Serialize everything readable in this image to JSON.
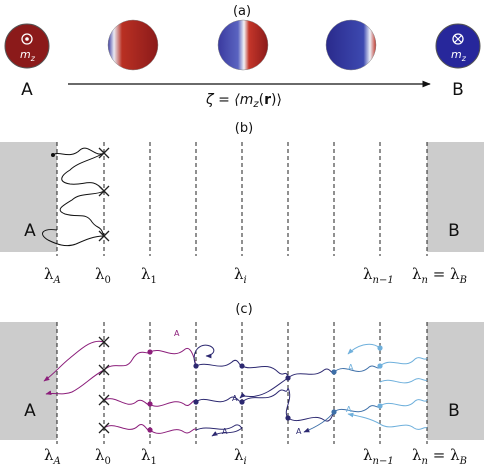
{
  "panel_a": {
    "label": "(a)",
    "state_a_label": "A",
    "state_b_label": "B",
    "state_a_symbol": "m",
    "state_a_sub": "z",
    "state_b_symbol": "m",
    "state_b_sub": "z",
    "cv_left": "ζ = ⟨m",
    "cv_sub": "z",
    "cv_mid": "(",
    "cv_bold": "r",
    "cv_right": ")⟩",
    "colors": {
      "state_a": "#8b1a1a",
      "state_b": "#27279b"
    }
  },
  "panel_b": {
    "label": "(b)",
    "region_a": "A",
    "region_b": "B",
    "interfaces": [
      {
        "main": "λ",
        "sub": "A"
      },
      {
        "main": "λ",
        "sub": "0"
      },
      {
        "main": "λ",
        "sub": "1"
      },
      {
        "main": "λ",
        "sub": "i"
      },
      {
        "main": "λ",
        "sub": "n−1"
      },
      {
        "main": "λ",
        "sub": "n",
        "suffix": " = λ",
        "suffix_sub": "B"
      }
    ]
  },
  "panel_c": {
    "label": "(c)",
    "region_a": "A",
    "region_b": "B",
    "marker_label": "A",
    "interfaces": [
      {
        "main": "λ",
        "sub": "A"
      },
      {
        "main": "λ",
        "sub": "0"
      },
      {
        "main": "λ",
        "sub": "1"
      },
      {
        "main": "λ",
        "sub": "i"
      },
      {
        "main": "λ",
        "sub": "n−1"
      },
      {
        "main": "λ",
        "sub": "n",
        "suffix": " = λ",
        "suffix_sub": "B"
      }
    ],
    "colors": {
      "purple": "#8b1d7a",
      "navy": "#2c2870",
      "blue": "#3d6fa8",
      "light_blue": "#6fb0dc"
    }
  }
}
